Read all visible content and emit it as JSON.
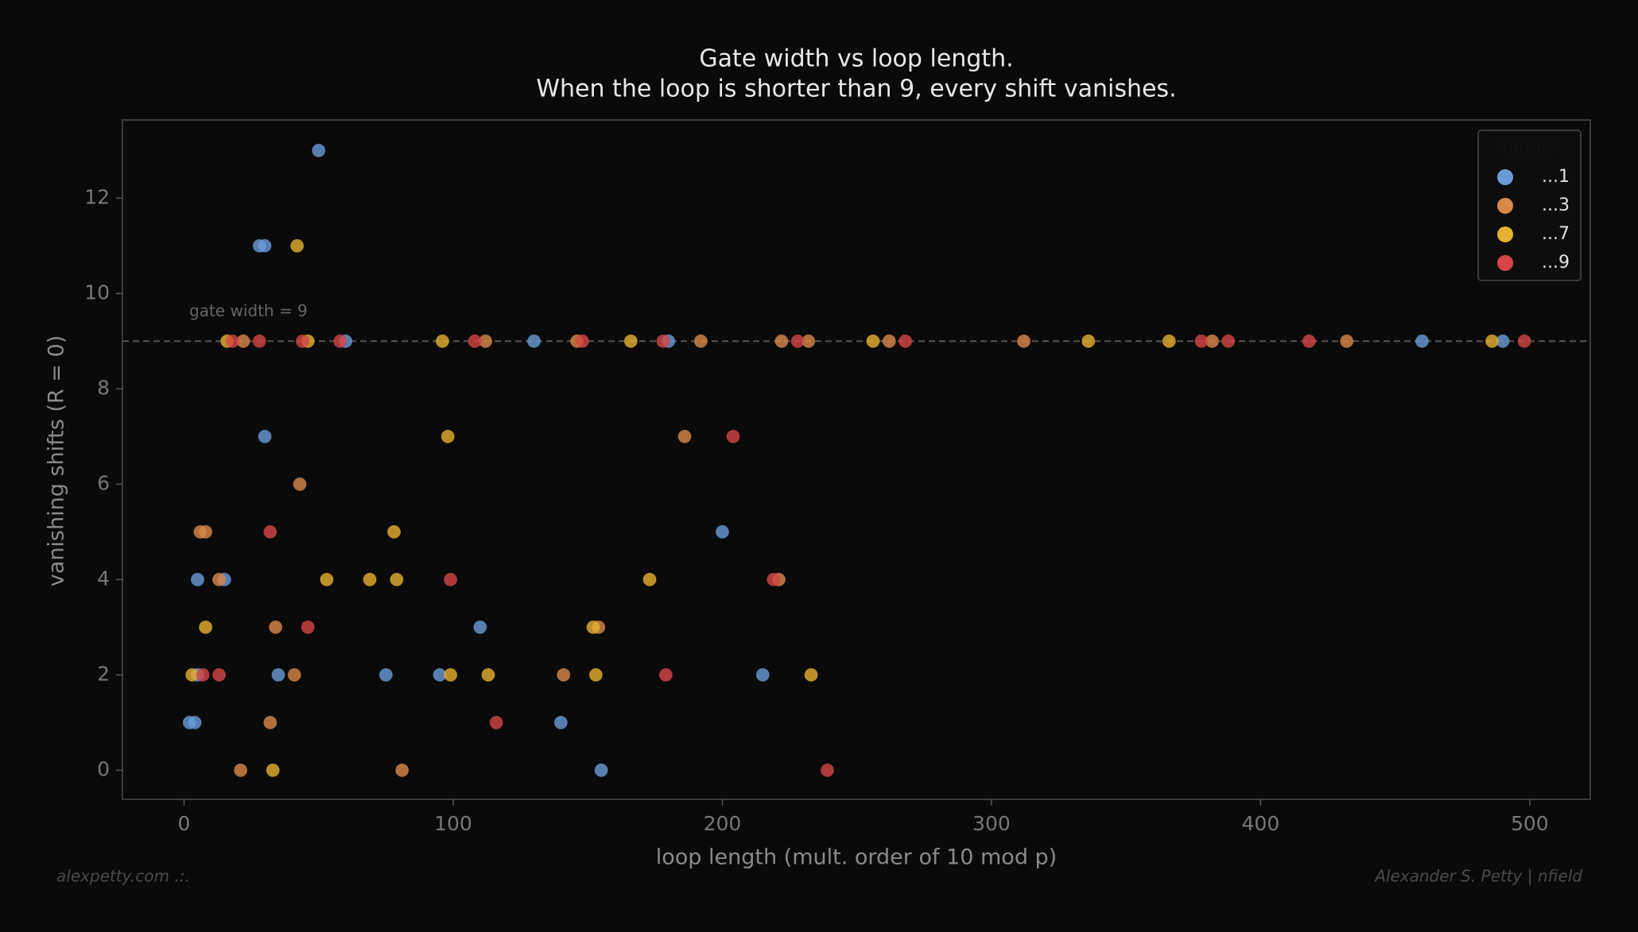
{
  "chart_data": {
    "type": "scatter",
    "title": "Gate width vs loop length.",
    "subtitle": "When the loop is shorter than 9, every shift vanishes.",
    "x_label": "loop length (mult. order of 10 mod p)",
    "y_label": "vanishing shifts (R = 0)",
    "xlim": [
      -22.9,
      522.5
    ],
    "ylim": [
      -0.61,
      13.64
    ],
    "xticks": [
      0,
      100,
      200,
      300,
      400,
      500
    ],
    "yticks": [
      0,
      2,
      4,
      6,
      8,
      10,
      12
    ],
    "hline": 9,
    "hline_label": "gate width = 9",
    "legend_title": "family",
    "legend": "upper right",
    "series": [
      {
        "name": "...1",
        "color": "#6a9bd8",
        "x": [
          50,
          28,
          30,
          60,
          130,
          180,
          460,
          490,
          30,
          200,
          5,
          15,
          110,
          5,
          35,
          75,
          95,
          215,
          2,
          4,
          140,
          155
        ],
        "values": [
          13,
          11,
          11,
          9,
          9,
          9,
          9,
          9,
          7,
          5,
          4,
          4,
          3,
          2,
          2,
          2,
          2,
          2,
          1,
          1,
          1,
          0
        ]
      },
      {
        "name": "...3",
        "color": "#d9884a",
        "x": [
          22,
          112,
          146,
          192,
          222,
          232,
          262,
          312,
          382,
          432,
          186,
          43,
          6,
          8,
          13,
          221,
          34,
          154,
          41,
          141,
          32,
          21,
          81
        ],
        "values": [
          9,
          9,
          9,
          9,
          9,
          9,
          9,
          9,
          9,
          9,
          7,
          6,
          5,
          5,
          4,
          4,
          3,
          3,
          2,
          2,
          1,
          0,
          0
        ]
      },
      {
        "name": "...7",
        "color": "#e6b030",
        "x": [
          42,
          16,
          46,
          96,
          166,
          256,
          336,
          366,
          486,
          98,
          78,
          53,
          69,
          79,
          173,
          8,
          152,
          3,
          99,
          113,
          153,
          233,
          33
        ],
        "values": [
          11,
          9,
          9,
          9,
          9,
          9,
          9,
          9,
          9,
          7,
          5,
          4,
          4,
          4,
          4,
          3,
          3,
          2,
          2,
          2,
          2,
          2,
          0
        ]
      },
      {
        "name": "...9",
        "color": "#d64545",
        "x": [
          18,
          28,
          44,
          58,
          108,
          148,
          178,
          228,
          268,
          378,
          388,
          418,
          498,
          204,
          32,
          99,
          219,
          46,
          7,
          13,
          179,
          116,
          239
        ],
        "values": [
          9,
          9,
          9,
          9,
          9,
          9,
          9,
          9,
          9,
          9,
          9,
          9,
          9,
          7,
          5,
          4,
          4,
          3,
          2,
          2,
          2,
          1,
          0
        ]
      }
    ]
  },
  "footer": {
    "left": "alexpetty.com  .:.",
    "right": "Alexander S. Petty  |  nfield"
  }
}
